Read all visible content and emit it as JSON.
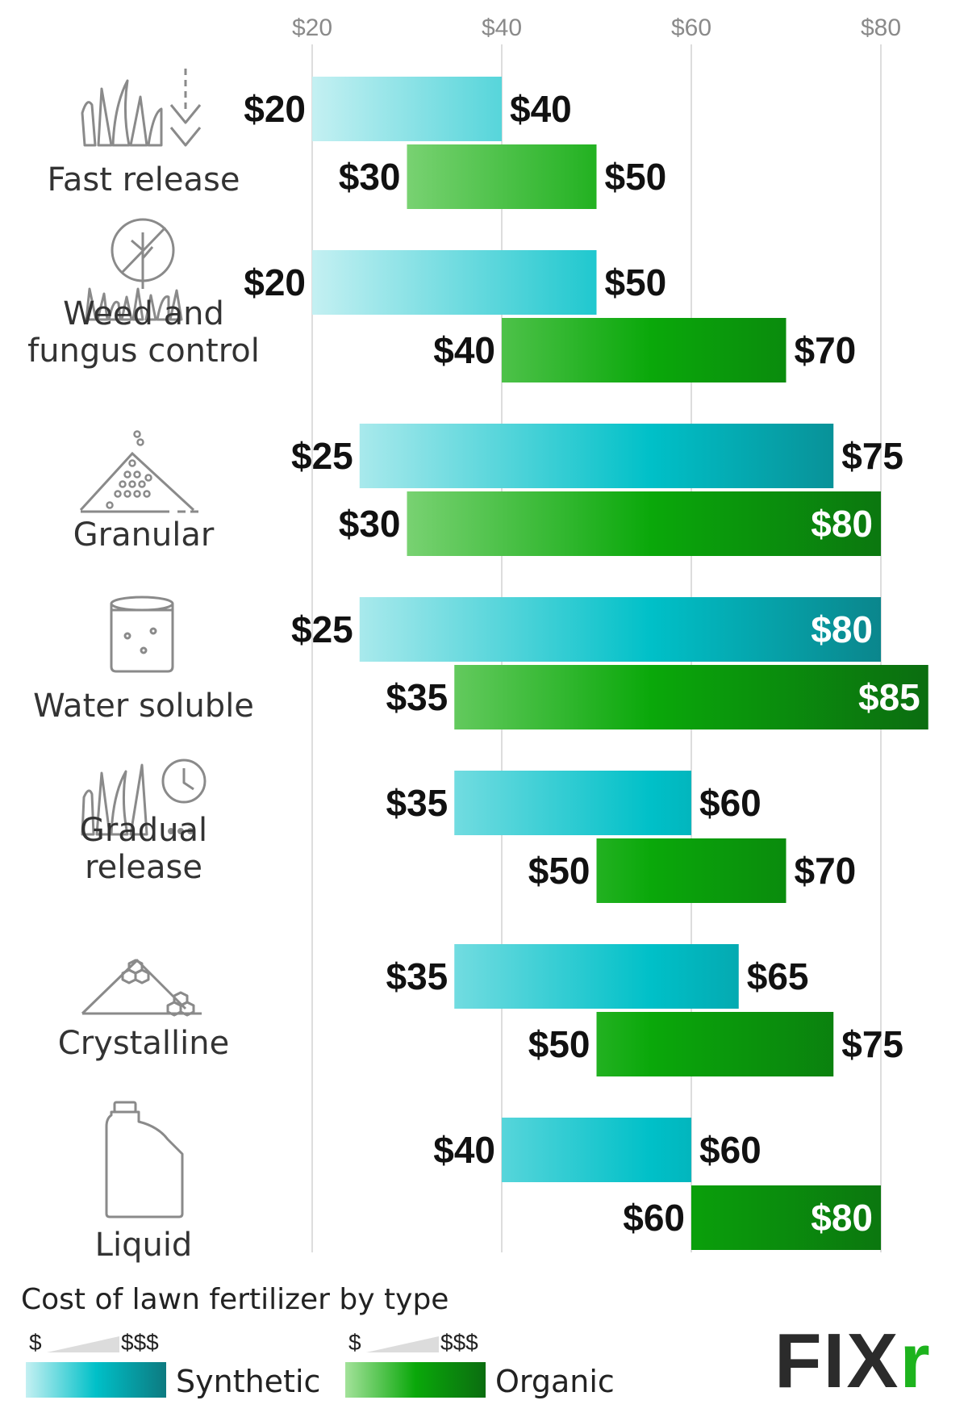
{
  "chart_data": {
    "type": "bar",
    "title": "Cost of lawn fertilizer by type",
    "x_ticks": [
      "$20",
      "$40",
      "$60",
      "$80"
    ],
    "xlim": [
      20,
      85
    ],
    "categories": [
      "Fast release",
      "Weed and\nfungus control",
      "Granular",
      "Water soluble",
      "Gradual\nrelease",
      "Crystalline",
      "Liquid"
    ],
    "series": [
      {
        "name": "Synthetic",
        "color_low": "#c4f0f2",
        "color_high": "#00c0c8",
        "color_dark": "#0d7a80",
        "ranges": [
          [
            20,
            40
          ],
          [
            20,
            50
          ],
          [
            25,
            75
          ],
          [
            25,
            80
          ],
          [
            35,
            60
          ],
          [
            35,
            65
          ],
          [
            40,
            60
          ]
        ],
        "low_labels": [
          "$20",
          "$20",
          "$25",
          "$25",
          "$35",
          "$35",
          "$40"
        ],
        "high_labels": [
          "$40",
          "$50",
          "$75",
          "$80",
          "$60",
          "$65",
          "$60"
        ]
      },
      {
        "name": "Organic",
        "color_low": "#a3e29a",
        "color_high": "#0aa80a",
        "color_dark": "#0b6d10",
        "ranges": [
          [
            30,
            50
          ],
          [
            40,
            70
          ],
          [
            30,
            80
          ],
          [
            35,
            85
          ],
          [
            50,
            70
          ],
          [
            50,
            75
          ],
          [
            60,
            80
          ]
        ],
        "low_labels": [
          "$30",
          "$40",
          "$30",
          "$35",
          "$50",
          "$50",
          "$60"
        ],
        "high_labels": [
          "$50",
          "$70",
          "$80",
          "$85",
          "$70",
          "$75",
          "$80"
        ]
      }
    ],
    "legend": {
      "scale_low": "$",
      "scale_high": "$$$",
      "labels": [
        "Synthetic",
        "Organic"
      ]
    }
  },
  "icons": [
    "fast-release-icon",
    "weed-control-icon",
    "granular-icon",
    "water-soluble-icon",
    "gradual-release-icon",
    "crystalline-icon",
    "liquid-jug-icon"
  ],
  "brand": {
    "logo_main": "FIX",
    "logo_accent": "r"
  }
}
